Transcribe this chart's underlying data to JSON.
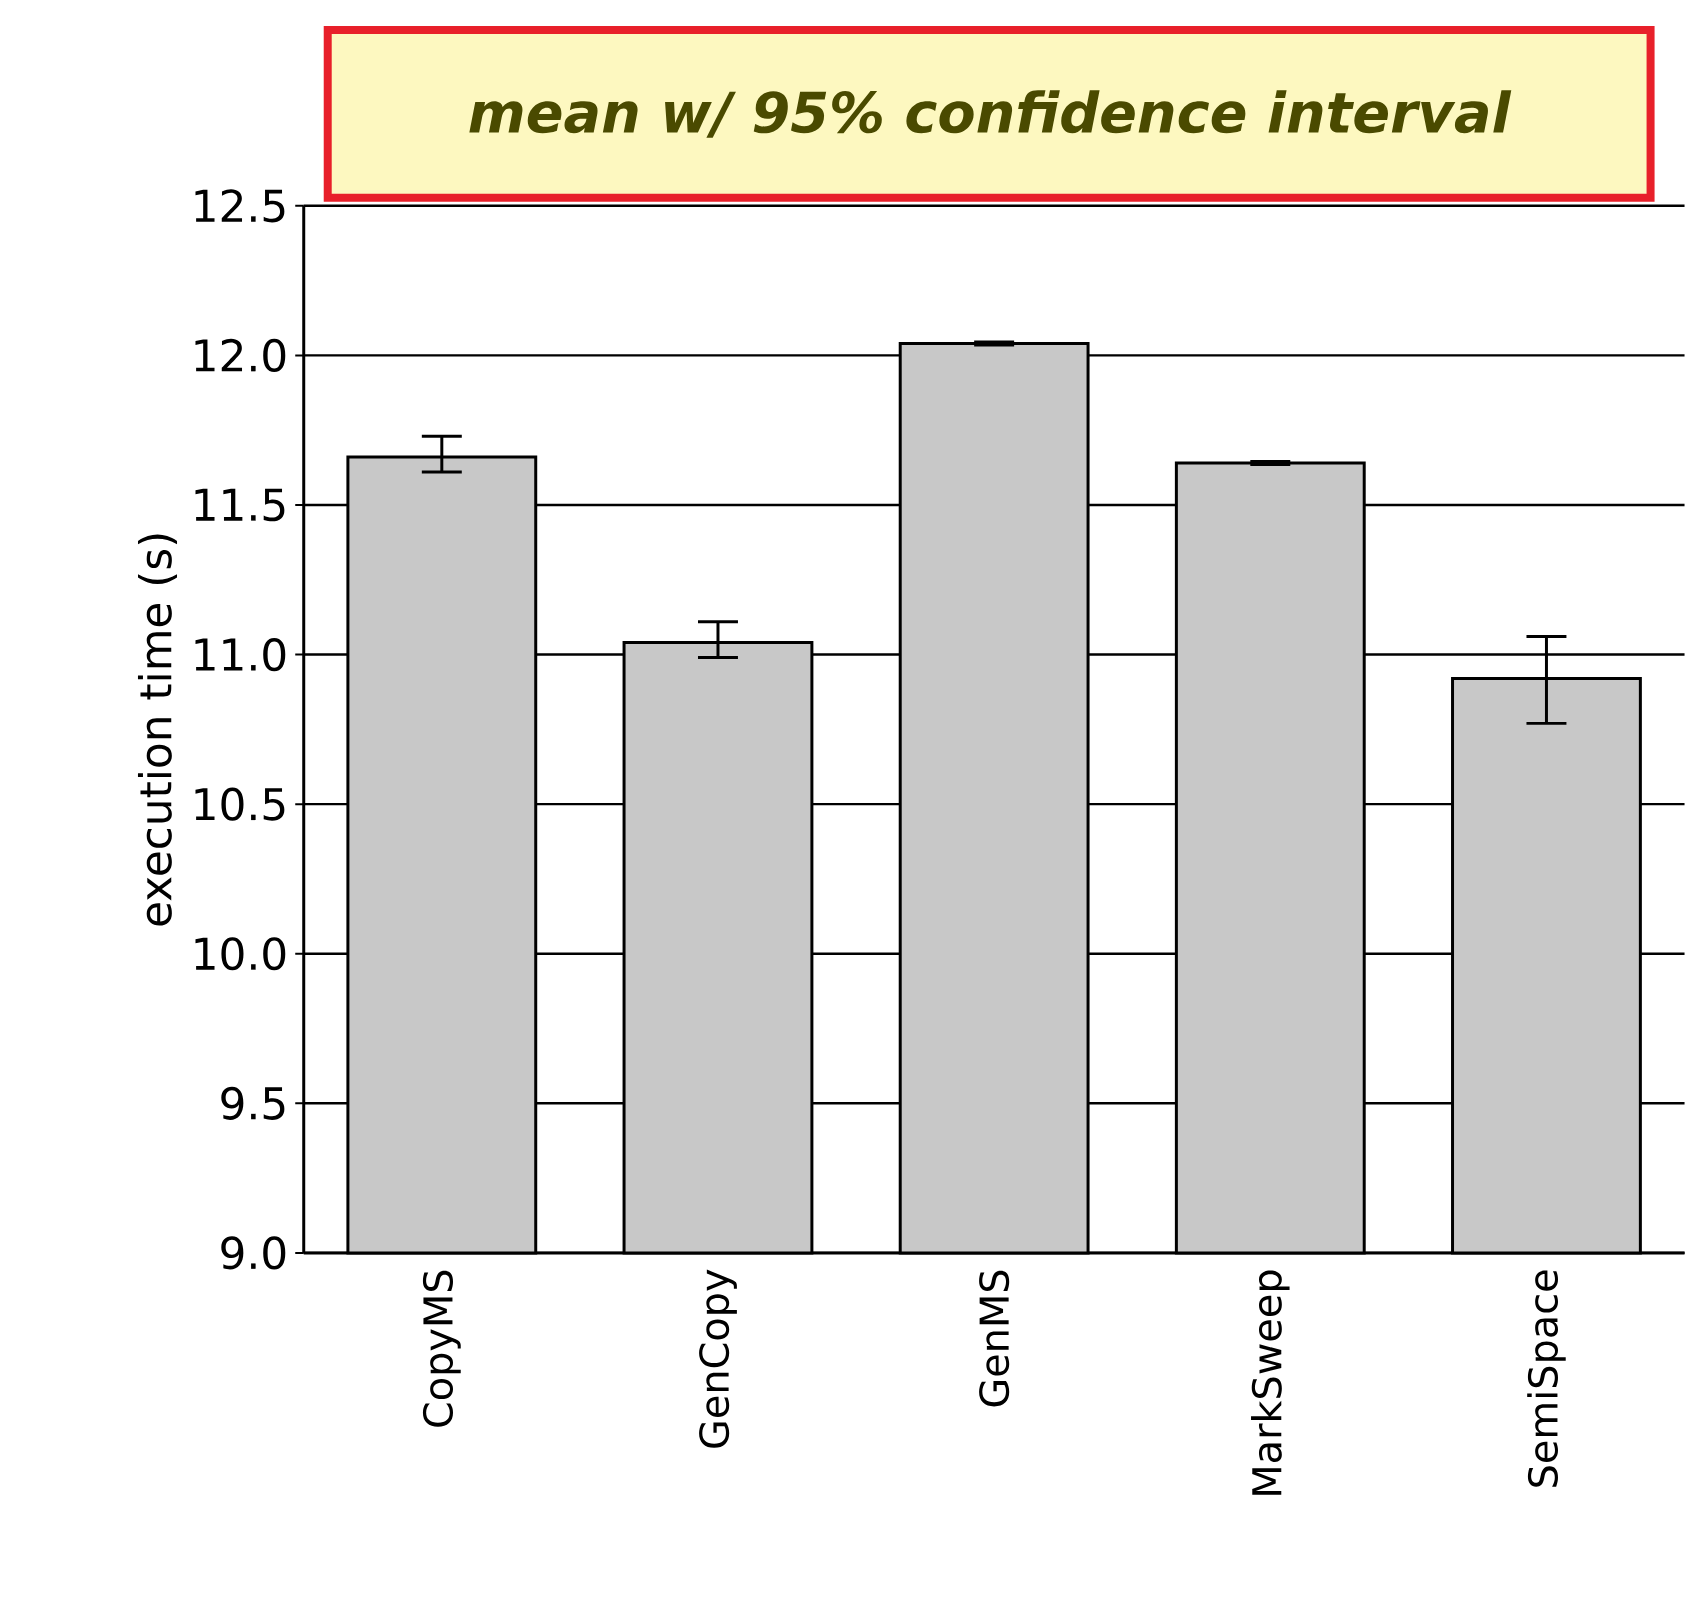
{
  "chart_data": {
    "type": "bar",
    "title": "mean w/ 95% confidence interval",
    "ylabel": "execution time (s)",
    "categories": [
      "CopyMS",
      "GenCopy",
      "GenMS",
      "MarkSweep",
      "SemiSpace"
    ],
    "values": [
      11.66,
      11.04,
      12.04,
      11.64,
      10.92
    ],
    "errors": [
      [
        11.61,
        11.73
      ],
      [
        10.99,
        11.11
      ],
      [
        12.035,
        12.045
      ],
      [
        11.635,
        11.645
      ],
      [
        10.77,
        11.06
      ]
    ],
    "color": "#c8c8c8",
    "ylim": [
      9,
      12.5
    ],
    "yticks": [
      {
        "value": 9,
        "label": "9.0"
      },
      {
        "value": 9.5,
        "label": "9.5"
      },
      {
        "value": 10,
        "label": "10.0"
      },
      {
        "value": 10.5,
        "label": "10.5"
      },
      {
        "value": 11,
        "label": "11.0"
      },
      {
        "value": 11.5,
        "label": "11.5"
      },
      {
        "value": 12,
        "label": "12.0"
      },
      {
        "value": 12.5,
        "label": "12.5"
      }
    ],
    "grid": "y"
  }
}
